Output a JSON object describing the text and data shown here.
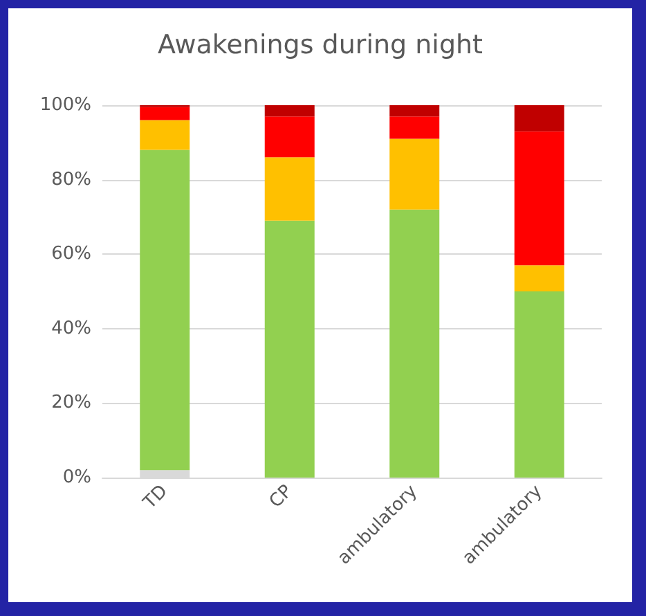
{
  "chart_data": {
    "type": "bar",
    "title": "Awakenings during night",
    "stacked": true,
    "categories": [
      "TD",
      "CP",
      "ambulatory",
      "ambulatory"
    ],
    "series": [
      {
        "color": "#d9d9d9",
        "values": [
          2,
          0,
          0,
          0
        ]
      },
      {
        "color": "#92d050",
        "values": [
          86,
          69,
          72,
          50
        ]
      },
      {
        "color": "#ffc000",
        "values": [
          8,
          17,
          19,
          7
        ]
      },
      {
        "color": "#ff0000",
        "values": [
          3.5,
          11,
          6,
          36
        ]
      },
      {
        "color": "#c00000",
        "values": [
          0.5,
          3,
          3,
          7
        ]
      }
    ],
    "ylim": [
      0,
      100
    ],
    "yticks": [
      {
        "value": 0,
        "label": "0%"
      },
      {
        "value": 20,
        "label": "20%"
      },
      {
        "value": 40,
        "label": "40%"
      },
      {
        "value": 60,
        "label": "60%"
      },
      {
        "value": 80,
        "label": "80%"
      },
      {
        "value": 100,
        "label": "100%"
      }
    ],
    "grid": "y"
  }
}
